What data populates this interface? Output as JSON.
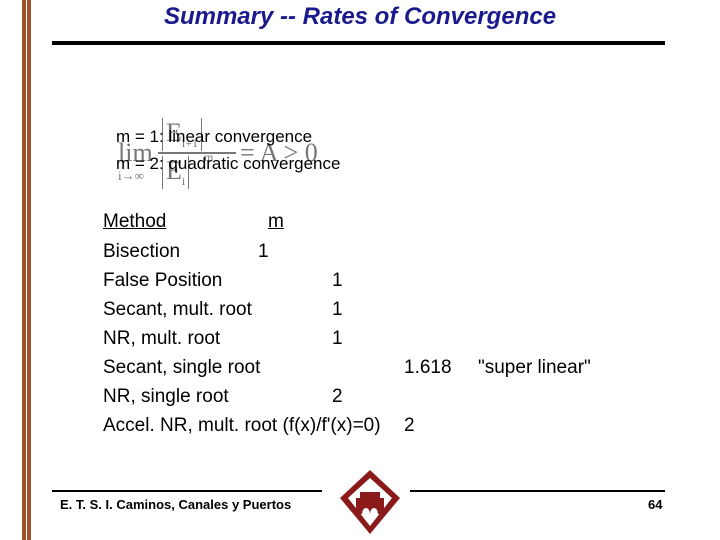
{
  "header": {
    "title": "Summary -- Rates of Convergence"
  },
  "formula": {
    "lim": "lim",
    "sub": "i→∞",
    "numerator": "E",
    "numerator_index": "i+1",
    "denominator": "E",
    "denominator_index": "i",
    "exponent": "m",
    "rhs": "= A > 0"
  },
  "definitions": [
    "m = 1: linear convergence",
    "m = 2: quadratic convergence"
  ],
  "table": {
    "header": [
      "Method",
      "m"
    ],
    "rows": [
      [
        "Bisection",
        "1"
      ],
      [
        "False Position",
        "1"
      ],
      [
        "Secant, mult. root",
        "1"
      ],
      [
        "NR, mult. root",
        "1"
      ],
      [
        "Secant, single root",
        "1.618",
        "\"super linear\""
      ],
      [
        "NR, single root",
        "2"
      ],
      [
        "Accel. NR, mult. root (f(x)/f'(x)=0)",
        "2"
      ]
    ]
  },
  "footer": {
    "institution": "E. T. S. I. Caminos, Canales y Puertos",
    "page": "64"
  }
}
